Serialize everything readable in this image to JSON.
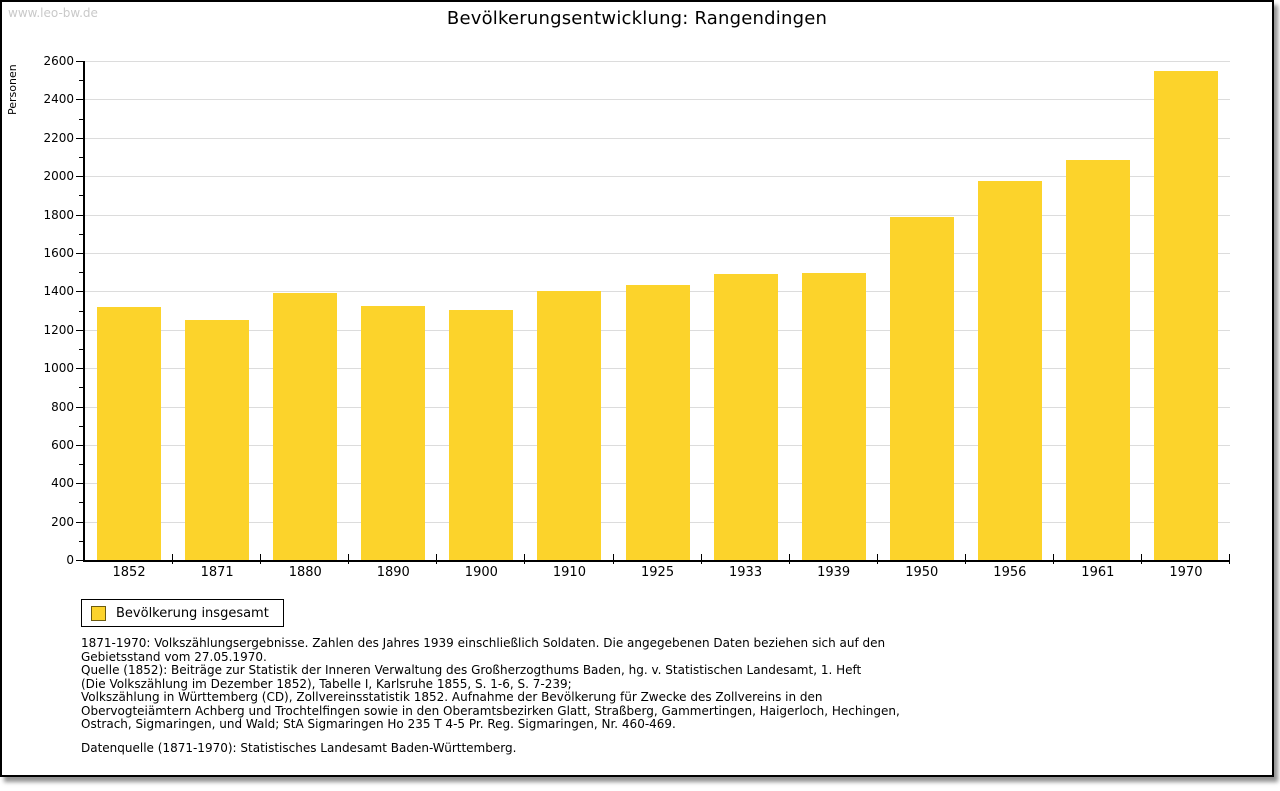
{
  "page": {
    "watermark": "www.leo-bw.de",
    "title": "Bevölkerungsentwicklung: Rangendingen"
  },
  "chart_data": {
    "type": "bar",
    "title": "Bevölkerungsentwicklung: Rangendingen",
    "xlabel": "",
    "ylabel": "Personen",
    "categories": [
      "1852",
      "1871",
      "1880",
      "1890",
      "1900",
      "1910",
      "1925",
      "1933",
      "1939",
      "1950",
      "1956",
      "1961",
      "1970"
    ],
    "values": [
      1320,
      1250,
      1390,
      1325,
      1305,
      1400,
      1435,
      1490,
      1495,
      1785,
      1975,
      2085,
      2550
    ],
    "ylim": [
      0,
      2600
    ],
    "ytick_major": 200,
    "ytick_minor": 100,
    "grid": "horizontal-major",
    "bar_color": "#FCD32B",
    "axis_color": "#000000",
    "gridline_color": "#DCDCDC",
    "legend": {
      "position": "bottom-left",
      "entries": [
        {
          "label": "Bevölkerung insgesamt",
          "swatch_color": "#FCD32B"
        }
      ]
    }
  },
  "footnote": {
    "lines": [
      "1871-1970: Volkszählungsergebnisse. Zahlen des Jahres 1939 einschließlich Soldaten. Die angegebenen Daten beziehen sich auf den",
      "Gebietsstand vom 27.05.1970.",
      "Quelle (1852): Beiträge zur Statistik der Inneren Verwaltung des Großherzogthums Baden, hg. v. Statistischen Landesamt, 1. Heft",
      "(Die Volkszählung im Dezember 1852), Tabelle I, Karlsruhe 1855, S. 1-6, S. 7-239;",
      "Volkszählung in Württemberg (CD), Zollvereinsstatistik 1852. Aufnahme der Bevölkerung für Zwecke des Zollvereins in den",
      "Obervogteiämtern Achberg und Trochtelfingen sowie in den Oberamtsbezirken Glatt, Straßberg, Gammertingen, Haigerloch, Hechingen,",
      "Ostrach, Sigmaringen, und Wald; StA Sigmaringen Ho 235 T 4-5 Pr. Reg. Sigmaringen, Nr. 460-469."
    ],
    "source_line": "Datenquelle (1871-1970): Statistisches Landesamt Baden-Württemberg."
  }
}
